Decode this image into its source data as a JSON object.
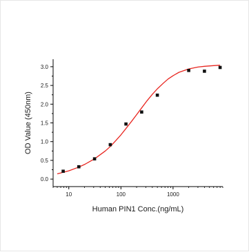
{
  "chart_data": {
    "type": "scatter",
    "title": "",
    "xlabel": "Human PIN1 Conc.(ng/mL)",
    "ylabel": "OD Value (450nm)",
    "x_scale": "log",
    "xlim": [
      5,
      9000
    ],
    "ylim": [
      -0.2,
      3.2
    ],
    "x_ticks": [
      10,
      100,
      1000
    ],
    "x_tick_labels": [
      "10",
      "100",
      "1000"
    ],
    "y_ticks": [
      0,
      0.5,
      1.0,
      1.5,
      2.0,
      2.5,
      3.0
    ],
    "y_tick_labels": [
      "0.0",
      "0.5",
      "1.0",
      "1.5",
      "2.0",
      "2.5",
      "3.0"
    ],
    "grid": false,
    "colors": {
      "points": "#111111",
      "curve": "#e8251f",
      "axes": "#000000"
    },
    "series": [
      {
        "type": "scatter",
        "x": [
          7.8,
          15.6,
          31.25,
          62.5,
          125,
          250,
          500,
          2000,
          4000,
          8000
        ],
        "y": [
          0.21,
          0.33,
          0.54,
          0.92,
          1.47,
          1.79,
          2.24,
          2.9,
          2.88,
          2.98
        ]
      },
      {
        "type": "line",
        "x": [
          6,
          7.8,
          10,
          15.6,
          20,
          31.25,
          50,
          62.5,
          80,
          100,
          125,
          160,
          200,
          250,
          320,
          400,
          500,
          650,
          800,
          1000,
          1300,
          2000,
          3000,
          4000,
          6000,
          8000
        ],
        "y": [
          0.14,
          0.18,
          0.22,
          0.32,
          0.39,
          0.54,
          0.75,
          0.87,
          1.03,
          1.18,
          1.35,
          1.54,
          1.72,
          1.9,
          2.1,
          2.26,
          2.41,
          2.56,
          2.67,
          2.76,
          2.85,
          2.94,
          2.99,
          3.01,
          3.03,
          3.04
        ]
      }
    ]
  }
}
